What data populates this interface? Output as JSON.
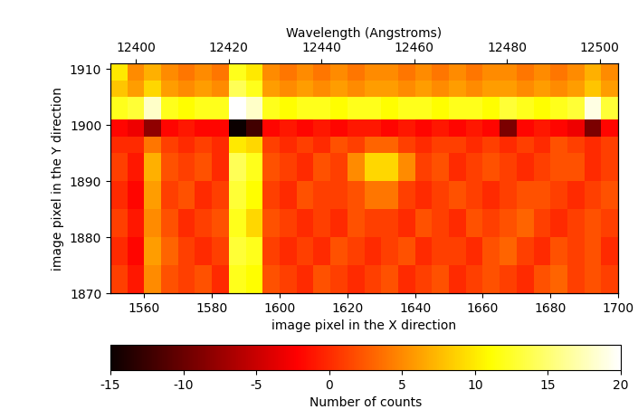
{
  "chart_data": {
    "type": "heatmap",
    "x_label": "image pixel in the X direction",
    "y_label": "image pixel in the Y direction",
    "x2_label": "Wavelength (Angstroms)",
    "colorbar_label": "Number of counts",
    "xlim": [
      1550,
      1700
    ],
    "xticks": [
      1560,
      1580,
      1600,
      1620,
      1640,
      1660,
      1680,
      1700
    ],
    "ylim": [
      1870,
      1911
    ],
    "yticks": [
      1870,
      1880,
      1890,
      1900,
      1910
    ],
    "x2lim": [
      12394.5,
      12504
    ],
    "x2ticks": [
      12400,
      12420,
      12440,
      12460,
      12480,
      12500
    ],
    "clim": [
      -15,
      20
    ],
    "colorbar_ticks": [
      -15,
      -10,
      -5,
      0,
      5,
      10,
      15,
      20
    ],
    "x_edges": [
      1550,
      1555,
      1560,
      1565,
      1570,
      1575,
      1580,
      1585,
      1590,
      1595,
      1600,
      1605,
      1610,
      1615,
      1620,
      1625,
      1630,
      1635,
      1640,
      1645,
      1650,
      1655,
      1660,
      1665,
      1670,
      1675,
      1680,
      1685,
      1690,
      1695,
      1700
    ],
    "y_edges": [
      1870,
      1875,
      1880,
      1885,
      1890,
      1895,
      1898,
      1901,
      1905,
      1908,
      1911
    ],
    "cells": [
      [
        1,
        -1,
        5,
        2,
        1,
        2,
        0,
        12,
        11,
        2,
        1,
        0,
        2,
        1,
        0,
        1,
        2,
        0,
        1,
        2,
        0,
        1,
        2,
        1,
        0,
        2,
        3,
        1,
        2,
        1
      ],
      [
        0,
        -2,
        6,
        3,
        1,
        0,
        1,
        13,
        12,
        1,
        0,
        1,
        0,
        2,
        1,
        0,
        1,
        2,
        0,
        1,
        1,
        0,
        2,
        3,
        1,
        0,
        2,
        1,
        2,
        0
      ],
      [
        1,
        -1,
        5,
        2,
        0,
        1,
        2,
        12,
        9,
        2,
        1,
        0,
        1,
        0,
        2,
        1,
        1,
        0,
        2,
        1,
        0,
        2,
        1,
        2,
        3,
        1,
        0,
        1,
        2,
        1
      ],
      [
        0,
        -2,
        6,
        1,
        2,
        0,
        1,
        13,
        11,
        1,
        0,
        2,
        1,
        1,
        2,
        4,
        4,
        1,
        0,
        1,
        2,
        1,
        0,
        1,
        2,
        2,
        1,
        0,
        1,
        2
      ],
      [
        1,
        -1,
        7,
        2,
        1,
        2,
        0,
        14,
        12,
        2,
        1,
        0,
        2,
        1,
        5,
        9,
        9,
        5,
        1,
        2,
        0,
        1,
        2,
        1,
        0,
        1,
        2,
        2,
        0,
        1
      ],
      [
        0,
        0,
        4,
        1,
        0,
        1,
        0,
        10,
        9,
        1,
        0,
        1,
        0,
        2,
        1,
        3,
        3,
        1,
        0,
        1,
        1,
        0,
        1,
        0,
        1,
        0,
        2,
        1,
        0,
        1
      ],
      [
        -2,
        -3,
        -8,
        -2,
        -1,
        -2,
        -2,
        -15,
        -12,
        -2,
        -1,
        -2,
        -1,
        -2,
        -1,
        -1,
        -2,
        -1,
        -2,
        -1,
        -2,
        -1,
        -2,
        -9,
        -2,
        -1,
        -2,
        -3,
        -9,
        -2
      ],
      [
        12,
        13,
        18,
        12,
        11,
        12,
        12,
        20,
        18,
        12,
        11,
        12,
        12,
        11,
        12,
        12,
        11,
        12,
        12,
        11,
        12,
        12,
        11,
        13,
        12,
        11,
        12,
        13,
        19,
        13
      ],
      [
        8,
        6,
        9,
        6,
        5,
        6,
        5,
        14,
        12,
        6,
        5,
        6,
        5,
        6,
        5,
        6,
        6,
        5,
        6,
        5,
        6,
        5,
        6,
        6,
        5,
        6,
        5,
        6,
        8,
        6
      ],
      [
        10,
        5,
        7,
        5,
        4,
        5,
        4,
        12,
        10,
        5,
        4,
        5,
        4,
        5,
        4,
        5,
        5,
        4,
        5,
        4,
        5,
        4,
        5,
        5,
        4,
        5,
        4,
        5,
        7,
        5
      ]
    ]
  }
}
